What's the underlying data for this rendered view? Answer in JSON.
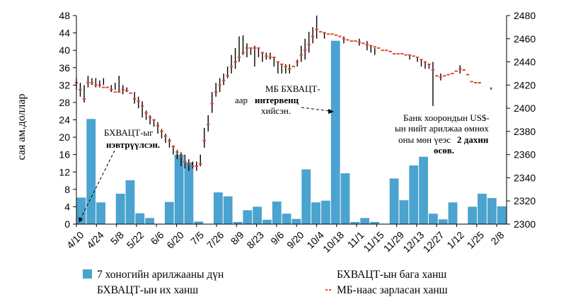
{
  "chart_data": {
    "type": "bar+candlestick+line",
    "ylabel_left": "сая ам.доллар",
    "ylim_left": [
      0,
      48
    ],
    "yticks_left": [
      "0",
      "4",
      "8",
      "12",
      "16",
      "20",
      "24",
      "28",
      "32",
      "36",
      "40",
      "44",
      "48"
    ],
    "ylim_right": [
      2300,
      2480
    ],
    "yticks_right": [
      "2300",
      "2320",
      "2340",
      "2360",
      "2380",
      "2400",
      "2420",
      "2440",
      "2460",
      "2480"
    ],
    "x_tick_labels": [
      "4/10",
      "4/24",
      "5/8",
      "5/22",
      "6/6",
      "6/20",
      "7/5",
      "7/26",
      "8/9",
      "8/23",
      "9/6",
      "9/20",
      "10/4",
      "10/18",
      "11/1",
      "11/15",
      "11/29",
      "12/13",
      "12/27",
      "1/12",
      "1/25",
      "2/8"
    ],
    "series": [
      {
        "name": "7 хоногийн арилжааны дүн",
        "type": "bar",
        "color": "#4ba3cf",
        "values": [
          6.1,
          24.2,
          5.0,
          0,
          7.0,
          10.1,
          2.5,
          1.4,
          0,
          5.1,
          16.0,
          14.2,
          0.6,
          0,
          7.3,
          6.4,
          0.5,
          3.2,
          4.0,
          1.0,
          5.2,
          2.4,
          1.2,
          12.6,
          5.0,
          5.4,
          42.2,
          11.7,
          0.5,
          1.4,
          0.5,
          0,
          10.5,
          5.5,
          13.5,
          15.5,
          2.4,
          1.1,
          5.0,
          0,
          4.0,
          7.0,
          6.0,
          4.1
        ]
      },
      {
        "name": "БХВАЦТ-ын их ханш",
        "type": "candlestick-high"
      },
      {
        "name": "БХВАЦТ-ын бага ханш",
        "type": "candlestick-low"
      },
      {
        "name": "МБ-наас зарласан ханш",
        "type": "dash-line",
        "color": "#e8482d",
        "points": [
          [
            0,
            2422
          ],
          [
            2,
            2416
          ],
          [
            4,
            2408
          ],
          [
            6,
            2422
          ],
          [
            8,
            2422
          ],
          [
            10,
            2420
          ],
          [
            12,
            2420
          ],
          [
            14,
            2418
          ],
          [
            16,
            2418
          ],
          [
            18,
            2416
          ],
          [
            20,
            2414
          ],
          [
            22,
            2414
          ],
          [
            24,
            2416
          ],
          [
            26,
            2415
          ],
          [
            28,
            2413
          ],
          [
            30,
            2408
          ],
          [
            32,
            2406
          ],
          [
            34,
            2402
          ],
          [
            36,
            2396
          ],
          [
            38,
            2392
          ],
          [
            40,
            2390
          ],
          [
            42,
            2385
          ],
          [
            44,
            2380
          ],
          [
            46,
            2376
          ],
          [
            48,
            2372
          ],
          [
            50,
            2367
          ],
          [
            52,
            2362
          ],
          [
            54,
            2358
          ],
          [
            56,
            2354
          ],
          [
            58,
            2352
          ],
          [
            60,
            2350
          ],
          [
            62,
            2350
          ],
          [
            64,
            2352
          ],
          [
            66,
            2372
          ],
          [
            68,
            2386
          ],
          [
            70,
            2404
          ],
          [
            72,
            2414
          ],
          [
            74,
            2420
          ],
          [
            76,
            2424
          ],
          [
            78,
            2428
          ],
          [
            80,
            2436
          ],
          [
            82,
            2440
          ],
          [
            84,
            2444
          ],
          [
            86,
            2448
          ],
          [
            88,
            2452
          ],
          [
            90,
            2452
          ],
          [
            92,
            2452
          ],
          [
            94,
            2452
          ],
          [
            96,
            2448
          ],
          [
            98,
            2445
          ],
          [
            100,
            2444
          ],
          [
            102,
            2444
          ],
          [
            104,
            2440
          ],
          [
            106,
            2438
          ],
          [
            108,
            2436
          ],
          [
            110,
            2434
          ],
          [
            112,
            2436
          ],
          [
            114,
            2440
          ],
          [
            116,
            2446
          ],
          [
            118,
            2450
          ],
          [
            120,
            2455
          ],
          [
            122,
            2462
          ],
          [
            124,
            2468
          ],
          [
            126,
            2466
          ],
          [
            128,
            2465
          ],
          [
            130,
            2464
          ],
          [
            132,
            2464
          ],
          [
            134,
            2463
          ],
          [
            136,
            2462
          ],
          [
            138,
            2460
          ],
          [
            140,
            2459
          ],
          [
            142,
            2458
          ],
          [
            144,
            2458
          ],
          [
            146,
            2457
          ],
          [
            148,
            2456
          ],
          [
            150,
            2455
          ],
          [
            152,
            2454
          ],
          [
            154,
            2453
          ],
          [
            156,
            2452
          ],
          [
            158,
            2450
          ],
          [
            160,
            2450
          ],
          [
            162,
            2449
          ],
          [
            164,
            2447
          ],
          [
            166,
            2447
          ],
          [
            168,
            2447
          ],
          [
            170,
            2446
          ],
          [
            172,
            2446
          ],
          [
            174,
            2445
          ],
          [
            176,
            2444
          ],
          [
            178,
            2442
          ],
          [
            180,
            2440
          ],
          [
            182,
            2438
          ],
          [
            184,
            2433
          ],
          [
            186,
            2428
          ],
          [
            188,
            2427
          ],
          [
            190,
            2428
          ],
          [
            192,
            2429
          ],
          [
            194,
            2430
          ],
          [
            196,
            2432
          ],
          [
            198,
            2434
          ],
          [
            200,
            2433
          ],
          [
            202,
            2429
          ],
          [
            204,
            2423
          ],
          [
            206,
            2422
          ],
          [
            208,
            2422
          ]
        ]
      }
    ],
    "candles": [
      [
        0,
        2426,
        2416
      ],
      [
        2,
        2422,
        2410
      ],
      [
        4,
        2420,
        2405
      ],
      [
        6,
        2428,
        2418
      ],
      [
        8,
        2426,
        2420
      ],
      [
        10,
        2426,
        2418
      ],
      [
        12,
        2424,
        2418
      ],
      [
        14,
        2426,
        2420
      ],
      [
        18,
        2420,
        2414
      ],
      [
        20,
        2422,
        2416
      ],
      [
        22,
        2428,
        2414
      ],
      [
        24,
        2420,
        2412
      ],
      [
        26,
        2418,
        2414
      ],
      [
        30,
        2414,
        2404
      ],
      [
        32,
        2410,
        2400
      ],
      [
        34,
        2406,
        2392
      ],
      [
        36,
        2398,
        2390
      ],
      [
        38,
        2394,
        2386
      ],
      [
        40,
        2390,
        2384
      ],
      [
        42,
        2388,
        2378
      ],
      [
        44,
        2382,
        2374
      ],
      [
        46,
        2378,
        2370
      ],
      [
        48,
        2374,
        2366
      ],
      [
        50,
        2368,
        2360
      ],
      [
        52,
        2364,
        2356
      ],
      [
        54,
        2362,
        2350
      ],
      [
        56,
        2360,
        2348
      ],
      [
        58,
        2356,
        2346
      ],
      [
        60,
        2354,
        2348
      ],
      [
        62,
        2354,
        2346
      ],
      [
        64,
        2360,
        2350
      ],
      [
        66,
        2383,
        2366
      ],
      [
        68,
        2394,
        2380
      ],
      [
        70,
        2414,
        2396
      ],
      [
        72,
        2422,
        2410
      ],
      [
        74,
        2426,
        2414
      ],
      [
        76,
        2430,
        2420
      ],
      [
        78,
        2436,
        2426
      ],
      [
        80,
        2446,
        2430
      ],
      [
        82,
        2452,
        2434
      ],
      [
        84,
        2462,
        2440
      ],
      [
        86,
        2463,
        2446
      ],
      [
        88,
        2456,
        2444
      ],
      [
        90,
        2452,
        2446
      ],
      [
        92,
        2454,
        2436
      ],
      [
        94,
        2452,
        2444
      ],
      [
        96,
        2448,
        2440
      ],
      [
        98,
        2448,
        2442
      ],
      [
        100,
        2448,
        2442
      ],
      [
        102,
        2444,
        2436
      ],
      [
        104,
        2440,
        2430
      ],
      [
        106,
        2438,
        2430
      ],
      [
        108,
        2438,
        2430
      ],
      [
        110,
        2438,
        2430
      ],
      [
        114,
        2442,
        2436
      ],
      [
        116,
        2454,
        2440
      ],
      [
        118,
        2460,
        2442
      ],
      [
        120,
        2466,
        2448
      ],
      [
        122,
        2470,
        2456
      ],
      [
        124,
        2480,
        2460
      ],
      [
        128,
        2466,
        2460
      ],
      [
        138,
        2462,
        2456
      ],
      [
        146,
        2460,
        2454
      ],
      [
        150,
        2458,
        2450
      ],
      [
        152,
        2454,
        2448
      ],
      [
        154,
        2452,
        2446
      ],
      [
        172,
        2446,
        2442
      ],
      [
        176,
        2444,
        2440
      ],
      [
        178,
        2442,
        2436
      ],
      [
        180,
        2440,
        2434
      ],
      [
        182,
        2438,
        2434
      ],
      [
        184,
        2440,
        2402
      ],
      [
        188,
        2430,
        2424
      ],
      [
        198,
        2437,
        2430
      ],
      [
        214,
        2418,
        2416
      ],
      [
        222,
        2402,
        2401
      ]
    ],
    "annotations": [
      {
        "lines": [
          "БХВАЦТ-ыг"
        ],
        "bold": [
          "нэвтрүүлсэн."
        ]
      },
      {
        "lines": [
          "МБ БХВАЦТ-",
          "аар"
        ],
        "bold": [
          "интервенц"
        ],
        "after": [
          "хийсэн."
        ]
      },
      {
        "lines": [
          "Банк хоорондын US$-",
          "ын нийт арилжаа өмнөх",
          "оны мөн үеэс"
        ],
        "bold": [
          "2 дахин",
          "өсөв."
        ]
      }
    ],
    "legend": [
      "7 хоногийн арилжааны дүн",
      "БХВАЦТ-ын бага ханш",
      "БХВАЦТ-ын их ханш",
      "МБ-наас зарласан ханш"
    ]
  }
}
